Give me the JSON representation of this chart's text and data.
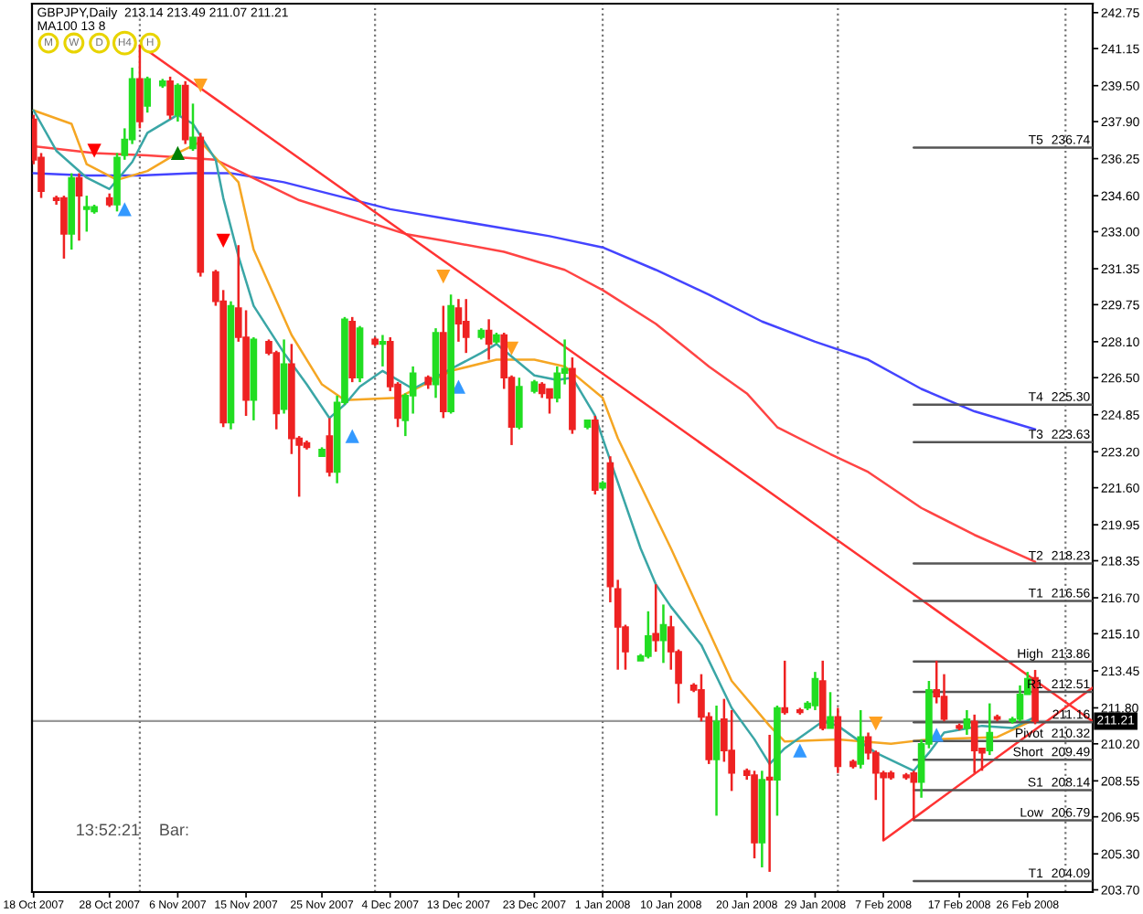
{
  "chart_data": {
    "type": "candlestick",
    "title": "GBPJPY,Daily  213.14 213.49 211.07 211.21",
    "subtitle": "MA100 13 8",
    "x": [
      "2007-10-18",
      "2007-10-19",
      "2007-10-21",
      "2007-10-22",
      "2007-10-23",
      "2007-10-24",
      "2007-10-25",
      "2007-10-26",
      "2007-10-28",
      "2007-10-29",
      "2007-10-30",
      "2007-10-31",
      "2007-11-01",
      "2007-11-02",
      "2007-11-04",
      "2007-11-05",
      "2007-11-06",
      "2007-11-07",
      "2007-11-08",
      "2007-11-09",
      "2007-11-11",
      "2007-11-12",
      "2007-11-13",
      "2007-11-14",
      "2007-11-15",
      "2007-11-16",
      "2007-11-18",
      "2007-11-19",
      "2007-11-20",
      "2007-11-21",
      "2007-11-22",
      "2007-11-23",
      "2007-11-25",
      "2007-11-26",
      "2007-11-27",
      "2007-11-28",
      "2007-11-29",
      "2007-11-30",
      "2007-12-02",
      "2007-12-03",
      "2007-12-04",
      "2007-12-05",
      "2007-12-06",
      "2007-12-07",
      "2007-12-09",
      "2007-12-10",
      "2007-12-11",
      "2007-12-12",
      "2007-12-13",
      "2007-12-14",
      "2007-12-16",
      "2007-12-17",
      "2007-12-18",
      "2007-12-19",
      "2007-12-20",
      "2007-12-21",
      "2007-12-23",
      "2007-12-24",
      "2007-12-25",
      "2007-12-26",
      "2007-12-27",
      "2007-12-28",
      "2007-12-30",
      "2007-12-31",
      "2008-01-01",
      "2008-01-02",
      "2008-01-03",
      "2008-01-04",
      "2008-01-06",
      "2008-01-07",
      "2008-01-08",
      "2008-01-09",
      "2008-01-10",
      "2008-01-11",
      "2008-01-13",
      "2008-01-14",
      "2008-01-15",
      "2008-01-16",
      "2008-01-17",
      "2008-01-18",
      "2008-01-20",
      "2008-01-21",
      "2008-01-22",
      "2008-01-23",
      "2008-01-24",
      "2008-01-25",
      "2008-01-27",
      "2008-01-28",
      "2008-01-29",
      "2008-01-30",
      "2008-01-31",
      "2008-02-01",
      "2008-02-03",
      "2008-02-04",
      "2008-02-05",
      "2008-02-06",
      "2008-02-07",
      "2008-02-08",
      "2008-02-10",
      "2008-02-11",
      "2008-02-12",
      "2008-02-13",
      "2008-02-14",
      "2008-02-15",
      "2008-02-17",
      "2008-02-18",
      "2008-02-19",
      "2008-02-20",
      "2008-02-21",
      "2008-02-22",
      "2008-02-24",
      "2008-02-25",
      "2008-02-26",
      "2008-02-27"
    ],
    "ohlc": [
      [
        238.0,
        238.2,
        236.0,
        236.2
      ],
      [
        236.3,
        236.5,
        234.5,
        234.8
      ],
      [
        234.5,
        234.6,
        234.2,
        234.4
      ],
      [
        234.5,
        234.6,
        231.8,
        232.9
      ],
      [
        232.9,
        235.6,
        232.2,
        235.4
      ],
      [
        235.4,
        235.6,
        232.6,
        234.6
      ],
      [
        234.0,
        234.6,
        233.0,
        234.1
      ],
      [
        233.9,
        234.2,
        233.8,
        234.1
      ],
      [
        234.5,
        234.7,
        234.1,
        234.2
      ],
      [
        234.2,
        236.5,
        233.9,
        236.3
      ],
      [
        236.4,
        237.6,
        236.2,
        237.1
      ],
      [
        237.1,
        240.3,
        236.9,
        239.8
      ],
      [
        239.8,
        241.3,
        237.6,
        237.9
      ],
      [
        238.6,
        239.9,
        238.3,
        239.8
      ],
      [
        239.5,
        239.8,
        239.4,
        239.7
      ],
      [
        239.7,
        239.9,
        238.0,
        238.2
      ],
      [
        238.2,
        239.6,
        237.9,
        239.5
      ],
      [
        239.5,
        239.7,
        236.9,
        237.1
      ],
      [
        236.7,
        238.7,
        236.6,
        237.2
      ],
      [
        237.2,
        237.4,
        231.0,
        231.2
      ],
      [
        231.2,
        231.3,
        229.7,
        229.9
      ],
      [
        229.9,
        230.4,
        224.3,
        224.5
      ],
      [
        224.5,
        229.9,
        224.2,
        229.7
      ],
      [
        229.6,
        232.4,
        228.1,
        228.3
      ],
      [
        228.3,
        229.5,
        224.8,
        225.5
      ],
      [
        225.5,
        228.3,
        224.6,
        228.2
      ],
      [
        228.1,
        228.2,
        227.5,
        227.6
      ],
      [
        227.6,
        227.7,
        224.2,
        224.9
      ],
      [
        225.1,
        228.2,
        224.9,
        227.1
      ],
      [
        227.1,
        228.0,
        223.1,
        223.8
      ],
      [
        223.8,
        223.9,
        221.2,
        223.5
      ],
      [
        223.6,
        223.7,
        223.3,
        223.4
      ],
      [
        223.0,
        223.4,
        223.0,
        223.3
      ],
      [
        223.9,
        224.7,
        222.1,
        222.3
      ],
      [
        222.3,
        225.7,
        221.8,
        225.4
      ],
      [
        225.4,
        229.2,
        225.3,
        229.1
      ],
      [
        229.0,
        229.2,
        226.3,
        226.5
      ],
      [
        226.5,
        228.8,
        226.3,
        228.7
      ],
      [
        228.2,
        228.3,
        227.9,
        228.0
      ],
      [
        228.0,
        228.4,
        227.0,
        228.1
      ],
      [
        228.1,
        228.3,
        225.9,
        226.1
      ],
      [
        226.2,
        226.3,
        224.3,
        224.7
      ],
      [
        224.6,
        225.8,
        223.9,
        225.7
      ],
      [
        225.7,
        227.0,
        224.9,
        226.7
      ],
      [
        226.5,
        226.6,
        226.0,
        226.2
      ],
      [
        226.2,
        228.7,
        225.6,
        228.5
      ],
      [
        228.5,
        229.7,
        224.7,
        225.0
      ],
      [
        225.0,
        230.2,
        224.9,
        229.7
      ],
      [
        229.6,
        230.0,
        228.1,
        228.9
      ],
      [
        229.0,
        230.0,
        227.6,
        228.3
      ],
      [
        228.3,
        228.7,
        228.2,
        228.6
      ],
      [
        228.6,
        229.1,
        227.3,
        228.0
      ],
      [
        228.1,
        228.5,
        228.0,
        228.4
      ],
      [
        228.4,
        228.5,
        226.0,
        226.5
      ],
      [
        226.5,
        226.6,
        223.5,
        224.3
      ],
      [
        224.3,
        226.5,
        224.2,
        226.1
      ],
      [
        225.9,
        226.4,
        225.8,
        226.3
      ],
      [
        226.2,
        226.3,
        225.6,
        225.8
      ],
      [
        226.0,
        226.0,
        224.9,
        225.6
      ],
      [
        225.6,
        227.0,
        225.4,
        226.7
      ],
      [
        226.7,
        228.2,
        226.2,
        226.9
      ],
      [
        226.9,
        227.4,
        224.0,
        224.2
      ],
      [
        224.3,
        224.6,
        224.2,
        224.6
      ],
      [
        224.6,
        224.8,
        221.3,
        221.5
      ],
      [
        221.6,
        221.9,
        221.5,
        221.8
      ],
      [
        222.7,
        223.0,
        216.5,
        217.2
      ],
      [
        217.1,
        217.5,
        213.5,
        215.4
      ],
      [
        215.4,
        215.5,
        213.5,
        214.3
      ],
      [
        213.9,
        214.2,
        213.9,
        214.1
      ],
      [
        214.1,
        216.1,
        214.0,
        215.0
      ],
      [
        215.1,
        217.3,
        214.3,
        214.8
      ],
      [
        214.8,
        216.4,
        213.8,
        215.5
      ],
      [
        215.4,
        215.9,
        213.5,
        214.3
      ],
      [
        214.3,
        214.4,
        212.0,
        212.9
      ],
      [
        212.8,
        212.9,
        212.5,
        212.6
      ],
      [
        212.6,
        213.3,
        211.2,
        211.4
      ],
      [
        211.4,
        211.6,
        209.3,
        209.5
      ],
      [
        209.5,
        211.9,
        207.0,
        211.2
      ],
      [
        211.3,
        212.2,
        209.4,
        209.9
      ],
      [
        209.9,
        211.7,
        208.1,
        208.9
      ],
      [
        209.0,
        209.1,
        208.6,
        208.8
      ],
      [
        208.8,
        209.0,
        205.1,
        205.8
      ],
      [
        205.8,
        209.0,
        204.7,
        208.6
      ],
      [
        208.7,
        210.6,
        204.5,
        208.6
      ],
      [
        208.6,
        211.9,
        207.0,
        211.8
      ],
      [
        211.8,
        213.9,
        211.5,
        211.6
      ],
      [
        211.7,
        211.8,
        211.5,
        211.6
      ],
      [
        211.8,
        212.1,
        211.7,
        212.0
      ],
      [
        211.9,
        213.4,
        211.7,
        213.1
      ],
      [
        213.0,
        213.9,
        210.8,
        210.9
      ],
      [
        210.9,
        212.5,
        210.9,
        211.4
      ],
      [
        211.4,
        211.8,
        208.9,
        209.2
      ],
      [
        209.4,
        209.5,
        209.1,
        209.2
      ],
      [
        209.3,
        211.7,
        209.1,
        210.5
      ],
      [
        210.5,
        210.7,
        209.5,
        209.8
      ],
      [
        209.8,
        209.9,
        207.7,
        208.9
      ],
      [
        208.9,
        209.0,
        205.9,
        208.7
      ],
      [
        208.9,
        209.0,
        208.6,
        208.7
      ],
      [
        208.8,
        208.9,
        208.6,
        208.7
      ],
      [
        208.9,
        209.0,
        206.8,
        208.5
      ],
      [
        208.5,
        210.4,
        207.8,
        210.2
      ],
      [
        210.2,
        213.0,
        210.0,
        212.6
      ],
      [
        212.6,
        213.9,
        212.0,
        212.3
      ],
      [
        212.3,
        213.3,
        211.2,
        211.3
      ],
      [
        211.0,
        211.1,
        210.8,
        210.9
      ],
      [
        210.9,
        211.7,
        210.6,
        211.3
      ],
      [
        211.2,
        211.5,
        208.9,
        209.9
      ],
      [
        210.0,
        210.0,
        209.0,
        209.8
      ],
      [
        209.9,
        212.0,
        209.7,
        210.7
      ],
      [
        211.4,
        211.5,
        211.2,
        211.3
      ],
      [
        211.2,
        211.4,
        211.1,
        211.3
      ],
      [
        211.3,
        212.8,
        211.2,
        212.4
      ],
      [
        212.4,
        213.4,
        212.4,
        213.1
      ],
      [
        213.14,
        213.49,
        211.07,
        211.21
      ]
    ],
    "colors": [
      "#ee2222",
      "#ee2222",
      "#ee2222",
      "#ee2222",
      "#22dd22",
      "#ee2222",
      "#22dd22",
      "#22dd22",
      "#ee2222",
      "#22dd22",
      "#22dd22",
      "#22dd22",
      "#ee2222",
      "#22dd22",
      "#22dd22",
      "#ee2222",
      "#22dd22",
      "#ee2222",
      "#22dd22",
      "#ee2222",
      "#ee2222",
      "#ee2222",
      "#22dd22",
      "#ee2222",
      "#ee2222",
      "#22dd22",
      "#ee2222",
      "#ee2222",
      "#22dd22",
      "#ee2222",
      "#ee2222",
      "#ee2222",
      "#22dd22",
      "#ee2222",
      "#22dd22",
      "#22dd22",
      "#ee2222",
      "#22dd22",
      "#ee2222",
      "#22dd22",
      "#ee2222",
      "#ee2222",
      "#22dd22",
      "#22dd22",
      "#ee2222",
      "#22dd22",
      "#ee2222",
      "#22dd22",
      "#ee2222",
      "#ee2222",
      "#22dd22",
      "#ee2222",
      "#22dd22",
      "#ee2222",
      "#ee2222",
      "#22dd22",
      "#22dd22",
      "#ee2222",
      "#ee2222",
      "#22dd22",
      "#22dd22",
      "#ee2222",
      "#22dd22",
      "#ee2222",
      "#22dd22",
      "#ee2222",
      "#ee2222",
      "#ee2222",
      "#22dd22",
      "#22dd22",
      "#ee2222",
      "#22dd22",
      "#ee2222",
      "#ee2222",
      "#ee2222",
      "#ee2222",
      "#ee2222",
      "#22dd22",
      "#ee2222",
      "#ee2222",
      "#ee2222",
      "#ee2222",
      "#22dd22",
      "#ee2222",
      "#22dd22",
      "#ee2222",
      "#ee2222",
      "#22dd22",
      "#22dd22",
      "#ee2222",
      "#22dd22",
      "#ee2222",
      "#ee2222",
      "#22dd22",
      "#ee2222",
      "#ee2222",
      "#ee2222",
      "#ee2222",
      "#ee2222",
      "#ee2222",
      "#22dd22",
      "#22dd22",
      "#ee2222",
      "#ee2222",
      "#ee2222",
      "#22dd22",
      "#ee2222",
      "#ee2222",
      "#22dd22",
      "#ee2222",
      "#22dd22",
      "#22dd22",
      "#22dd22",
      "#ee2222"
    ],
    "series": [
      {
        "type": "line",
        "color": "#4444ff",
        "x": [
          "2007-10-18",
          "2007-10-25",
          "2007-11-01",
          "2007-11-08",
          "2007-11-13",
          "2007-11-20",
          "2007-11-27",
          "2007-12-04",
          "2007-12-11",
          "2007-12-18",
          "2007-12-25",
          "2008-01-01",
          "2008-01-08",
          "2008-01-15",
          "2008-01-22",
          "2008-01-29",
          "2008-02-05",
          "2008-02-12",
          "2008-02-19",
          "2008-02-27"
        ],
        "values": [
          235.6,
          235.5,
          235.5,
          235.6,
          235.6,
          235.2,
          234.6,
          234.0,
          233.6,
          233.2,
          232.8,
          232.3,
          231.3,
          230.2,
          229.0,
          228.1,
          227.3,
          226.0,
          225.0,
          224.2
        ]
      },
      {
        "type": "line",
        "color": "#ff4444",
        "x": [
          "2007-10-18",
          "2007-10-26",
          "2007-11-02",
          "2007-11-11",
          "2007-11-22",
          "2007-12-06",
          "2007-12-11",
          "2007-12-19",
          "2007-12-27",
          "2008-01-01",
          "2008-01-08",
          "2008-01-15",
          "2008-01-20",
          "2008-01-24",
          "2008-01-31",
          "2008-02-05",
          "2008-02-12",
          "2008-02-19",
          "2008-02-27"
        ],
        "values": [
          236.8,
          236.5,
          236.4,
          236.2,
          234.4,
          232.9,
          232.6,
          232.1,
          231.3,
          230.4,
          228.9,
          227.0,
          225.8,
          224.3,
          223.1,
          222.3,
          220.7,
          219.5,
          218.3
        ]
      },
      {
        "type": "line",
        "color": "#f5a623",
        "x": [
          "2007-10-18",
          "2007-10-23",
          "2007-10-25",
          "2007-10-29",
          "2007-11-02",
          "2007-11-06",
          "2007-11-09",
          "2007-11-14",
          "2007-11-16",
          "2007-11-21",
          "2007-11-25",
          "2007-11-28",
          "2007-12-05",
          "2007-12-12",
          "2007-12-18",
          "2007-12-23",
          "2007-12-27",
          "2008-01-01",
          "2008-01-03",
          "2008-01-10",
          "2008-01-18",
          "2008-01-23",
          "2008-01-25",
          "2008-02-01",
          "2008-02-08",
          "2008-02-13",
          "2008-02-22",
          "2008-02-27"
        ],
        "values": [
          238.4,
          237.8,
          236.0,
          235.3,
          235.7,
          236.5,
          237.0,
          235.2,
          232.2,
          228.4,
          226.2,
          225.5,
          225.6,
          226.8,
          227.3,
          227.3,
          227.0,
          225.6,
          223.8,
          218.9,
          213.0,
          211.0,
          210.3,
          210.4,
          210.2,
          210.4,
          210.5,
          211.3
        ]
      },
      {
        "type": "line",
        "color": "#3aa6a6",
        "x": [
          "2007-10-18",
          "2007-10-21",
          "2007-10-25",
          "2007-10-28",
          "2007-10-31",
          "2007-11-02",
          "2007-11-06",
          "2007-11-08",
          "2007-11-11",
          "2007-11-12",
          "2007-11-14",
          "2007-11-16",
          "2007-11-20",
          "2007-11-23",
          "2007-11-26",
          "2007-11-28",
          "2007-11-30",
          "2007-12-03",
          "2007-12-07",
          "2007-12-16",
          "2007-12-18",
          "2007-12-23",
          "2007-12-26",
          "2007-12-28",
          "2007-12-31",
          "2008-01-01",
          "2008-01-06",
          "2008-01-08",
          "2008-01-10",
          "2008-01-14",
          "2008-01-18",
          "2008-01-21",
          "2008-01-23",
          "2008-01-25",
          "2008-01-30",
          "2008-02-01",
          "2008-02-06",
          "2008-02-11",
          "2008-02-13",
          "2008-02-15",
          "2008-02-20",
          "2008-02-24",
          "2008-02-27"
        ],
        "values": [
          238.4,
          236.6,
          235.4,
          234.9,
          236.1,
          237.4,
          238.2,
          237.8,
          236.2,
          234.5,
          231.9,
          229.7,
          227.6,
          226.2,
          224.7,
          225.3,
          226.1,
          226.8,
          226.0,
          227.6,
          228.0,
          226.6,
          226.4,
          226.5,
          224.8,
          223.8,
          218.9,
          217.3,
          216.3,
          214.6,
          211.8,
          210.4,
          209.3,
          210.0,
          211.2,
          211.0,
          209.8,
          209.0,
          209.8,
          210.7,
          211.0,
          210.9,
          211.4
        ]
      },
      {
        "type": "line",
        "color": "#ff3333",
        "x": [
          "2007-11-01",
          "2008-03-05T14:00"
        ],
        "values": [
          241.3,
          211.2
        ]
      },
      {
        "type": "line",
        "color": "#ff3333",
        "x": [
          "2008-02-07",
          "2008-03-05T14:00"
        ],
        "values": [
          205.9,
          212.7
        ]
      },
      {
        "type": "line",
        "name": "T5",
        "color": "#555555",
        "x": [
          "2008-02-11",
          "2008-03-05T14:00"
        ],
        "values": [
          236.74,
          236.74
        ],
        "value_labels": [
          null,
          "236.74"
        ]
      },
      {
        "type": "line",
        "name": "T4",
        "color": "#555555",
        "x": [
          "2008-02-11",
          "2008-03-05T14:00"
        ],
        "values": [
          225.3,
          225.3
        ],
        "value_labels": [
          null,
          "225.30"
        ]
      },
      {
        "type": "line",
        "name": "T3",
        "color": "#555555",
        "x": [
          "2008-02-11",
          "2008-03-05T14:00"
        ],
        "values": [
          223.63,
          223.63
        ],
        "value_labels": [
          null,
          "223.63"
        ]
      },
      {
        "type": "line",
        "name": "T2",
        "color": "#555555",
        "x": [
          "2008-02-11",
          "2008-03-05T14:00"
        ],
        "values": [
          218.23,
          218.23
        ],
        "value_labels": [
          null,
          "218.23"
        ]
      },
      {
        "type": "line",
        "name": "T1",
        "color": "#555555",
        "x": [
          "2008-02-11",
          "2008-03-05T14:00"
        ],
        "values": [
          216.56,
          216.56
        ],
        "value_labels": [
          null,
          "216.56"
        ]
      },
      {
        "type": "line",
        "name": "High",
        "color": "#555555",
        "x": [
          "2008-02-11",
          "2008-03-05T14:00"
        ],
        "values": [
          213.86,
          213.86
        ],
        "value_labels": [
          null,
          "213.86"
        ]
      },
      {
        "type": "line",
        "name": "R1",
        "color": "#555555",
        "x": [
          "2008-02-11",
          "2008-03-05T14:00"
        ],
        "values": [
          212.51,
          212.51
        ],
        "value_labels": [
          null,
          "212.51"
        ]
      },
      {
        "type": "line",
        "color": "#555555",
        "x": [
          "2008-02-11",
          "2008-03-05T14:00"
        ],
        "values": [
          211.16,
          211.16
        ],
        "value_labels": [
          null,
          "211.16"
        ]
      },
      {
        "type": "line",
        "name": "Pivot",
        "color": "#555555",
        "x": [
          "2008-02-11",
          "2008-03-05T14:00"
        ],
        "values": [
          210.32,
          210.32
        ],
        "value_labels": [
          null,
          "210.32"
        ]
      },
      {
        "type": "line",
        "name": "Short",
        "color": "#555555",
        "x": [
          "2008-02-11",
          "2008-03-05T14:00"
        ],
        "values": [
          209.49,
          209.49
        ],
        "value_labels": [
          null,
          "209.49"
        ]
      },
      {
        "type": "line",
        "name": "S1",
        "color": "#555555",
        "x": [
          "2008-02-11",
          "2008-03-05T14:00"
        ],
        "values": [
          208.14,
          208.14
        ],
        "value_labels": [
          null,
          "208.14"
        ]
      },
      {
        "type": "line",
        "name": "Low",
        "color": "#555555",
        "x": [
          "2008-02-11",
          "2008-03-05T14:00"
        ],
        "values": [
          206.79,
          206.79
        ],
        "value_labels": [
          null,
          "206.79"
        ]
      },
      {
        "type": "line",
        "name": "T1",
        "color": "#555555",
        "x": [
          "2008-02-11",
          "2008-03-05T14:00"
        ],
        "values": [
          204.09,
          204.09
        ],
        "value_labels": [
          null,
          "204.09"
        ]
      },
      {
        "type": "scatter",
        "color": "#ff0000",
        "marker": "triangle",
        "x": [
          "2007-10-26",
          "2007-11-12"
        ],
        "values": [
          236.6,
          232.6
        ]
      },
      {
        "type": "scatter",
        "color": "#008000",
        "marker": "triangle",
        "x": [
          "2007-11-06"
        ],
        "values": [
          236.5
        ]
      },
      {
        "type": "scatter",
        "color": "#3399ff",
        "marker": "triangle",
        "x": [
          "2007-10-30",
          "2007-11-29",
          "2007-12-13",
          "2008-01-27",
          "2008-02-14"
        ],
        "values": [
          234.0,
          223.9,
          226.1,
          209.9,
          210.6
        ]
      },
      {
        "type": "scatter",
        "color": "#ffa020",
        "marker": "triangle",
        "x": [
          "2007-11-09",
          "2007-12-11",
          "2007-12-20",
          "2008-02-06"
        ],
        "values": [
          239.5,
          231.0,
          227.8,
          211.1
        ]
      }
    ],
    "xlim": [
      "2007-10-17T19:00",
      "2008-03-05T14:00"
    ],
    "xticks": [
      {
        "value": "2007-10-18",
        "label": "18 Oct 2007"
      },
      {
        "value": "2007-10-28",
        "label": "28 Oct 2007"
      },
      {
        "value": "2007-11-06",
        "label": "6 Nov 2007"
      },
      {
        "value": "2007-11-15",
        "label": "15 Nov 2007"
      },
      {
        "value": "2007-11-25",
        "label": "25 Nov 2007"
      },
      {
        "value": "2007-12-04",
        "label": "4 Dec 2007"
      },
      {
        "value": "2007-12-13",
        "label": "13 Dec 2007"
      },
      {
        "value": "2007-12-23",
        "label": "23 Dec 2007"
      },
      {
        "value": "2008-01-01",
        "label": "1 Jan 2008"
      },
      {
        "value": "2008-01-10",
        "label": "10 Jan 2008"
      },
      {
        "value": "2008-01-20",
        "label": "20 Jan 2008"
      },
      {
        "value": "2008-01-29",
        "label": "29 Jan 2008"
      },
      {
        "value": "2008-02-07",
        "label": "7 Feb 2008"
      },
      {
        "value": "2008-02-17",
        "label": "17 Feb 2008"
      },
      {
        "value": "2008-02-26",
        "label": "26 Feb 2008"
      }
    ],
    "ylim": [
      203.6,
      243.15
    ],
    "yticks": [
      242.75,
      241.15,
      {
        "value": 239.5,
        "label": "239.50"
      },
      {
        "value": 237.9,
        "label": "237.90"
      },
      236.25,
      {
        "value": 234.6,
        "label": "234.60"
      },
      {
        "value": 233,
        "label": "233.00"
      },
      231.35,
      229.75,
      {
        "value": 228.1,
        "label": "228.10"
      },
      {
        "value": 226.5,
        "label": "226.50"
      },
      224.85,
      {
        "value": 223.2,
        "label": "223.20"
      },
      {
        "value": 221.6,
        "label": "221.60"
      },
      219.95,
      218.35,
      {
        "value": 216.7,
        "label": "216.70"
      },
      {
        "value": 215.1,
        "label": "215.10"
      },
      213.45,
      {
        "value": 211.8,
        "label": "211.80"
      },
      {
        "value": 210.2,
        "label": "210.20"
      },
      208.55,
      206.95,
      {
        "value": 205.3,
        "label": "205.30"
      },
      {
        "value": 203.7,
        "label": "203.70"
      }
    ],
    "ref_lines": [
      {
        "axis": "y",
        "value": 211.21,
        "label": "211.21",
        "color": "#999999"
      },
      {
        "axis": "x",
        "value": "2007-11-01",
        "color": "#777777",
        "line_style": "dotted"
      },
      {
        "axis": "x",
        "value": "2007-12-02",
        "color": "#777777",
        "line_style": "dotted"
      },
      {
        "axis": "x",
        "value": "2008-01-01",
        "color": "#777777",
        "line_style": "dotted"
      },
      {
        "axis": "x",
        "value": "2008-02-01",
        "color": "#777777",
        "line_style": "dotted"
      },
      {
        "axis": "x",
        "value": "2008-03-02",
        "color": "#777777",
        "line_style": "dotted"
      }
    ],
    "annotations": [
      "M",
      "W",
      "D",
      "H4",
      "H",
      "13:52:21",
      "Bar:"
    ]
  }
}
